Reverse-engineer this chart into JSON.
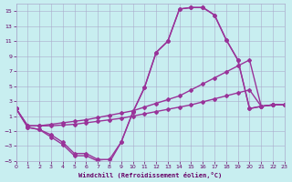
{
  "xlabel": "Windchill (Refroidissement éolien,°C)",
  "background_color": "#c8eef0",
  "grid_color": "#aaaacc",
  "line_color": "#993399",
  "xmin": 0,
  "xmax": 23,
  "ymin": -5,
  "ymax": 16,
  "yticks": [
    -5,
    -3,
    -1,
    1,
    3,
    5,
    7,
    9,
    11,
    13,
    15
  ],
  "line1_x": [
    0,
    1,
    2,
    3,
    4,
    5,
    6,
    7,
    8,
    9,
    10,
    11,
    12,
    13,
    14,
    15,
    16,
    17,
    18,
    19,
    20,
    21,
    22,
    23
  ],
  "line1_y": [
    2,
    -0.5,
    -0.8,
    -1.8,
    -2.8,
    -4.3,
    -4.3,
    -5.0,
    -5.2,
    -2.5,
    1.5,
    4.8,
    9.5,
    11.0,
    15.3,
    15.5,
    15.5,
    14.5,
    11.2,
    8.5,
    2.0,
    2.3,
    2.5,
    2.5
  ],
  "line2_x": [
    0,
    1,
    2,
    3,
    4,
    5,
    6,
    7,
    8,
    9,
    10,
    11,
    12,
    13,
    14,
    15,
    16,
    17,
    18,
    19,
    20,
    21,
    22,
    23
  ],
  "line2_y": [
    2,
    -0.5,
    -0.8,
    -1.5,
    -2.5,
    -4.0,
    -4.0,
    -4.8,
    -4.8,
    -2.5,
    1.5,
    4.8,
    9.5,
    11.0,
    15.3,
    15.5,
    15.5,
    14.5,
    11.2,
    8.5,
    2.0,
    2.3,
    2.5,
    2.5
  ],
  "line3_x": [
    0,
    1,
    2,
    3,
    4,
    5,
    6,
    7,
    8,
    9,
    10,
    11,
    12,
    13,
    14,
    15,
    16,
    17,
    18,
    19,
    20,
    21,
    22,
    23
  ],
  "line3_y": [
    2,
    -0.3,
    -0.3,
    -0.3,
    -0.2,
    -0.1,
    0.1,
    0.3,
    0.5,
    0.7,
    1.0,
    1.3,
    1.6,
    1.9,
    2.2,
    2.5,
    2.9,
    3.3,
    3.7,
    4.1,
    4.5,
    2.3,
    2.5,
    2.5
  ],
  "line4_x": [
    0,
    1,
    2,
    3,
    4,
    5,
    6,
    7,
    8,
    9,
    10,
    11,
    12,
    13,
    14,
    15,
    16,
    17,
    18,
    19,
    20,
    21,
    22,
    23
  ],
  "line4_y": [
    2,
    -0.3,
    -0.3,
    -0.1,
    0.1,
    0.3,
    0.5,
    0.8,
    1.1,
    1.4,
    1.7,
    2.2,
    2.7,
    3.2,
    3.7,
    4.5,
    5.3,
    6.1,
    6.9,
    7.7,
    8.5,
    2.3,
    2.5,
    2.5
  ],
  "marker": "D",
  "markersize": 2,
  "linewidth": 1.0
}
